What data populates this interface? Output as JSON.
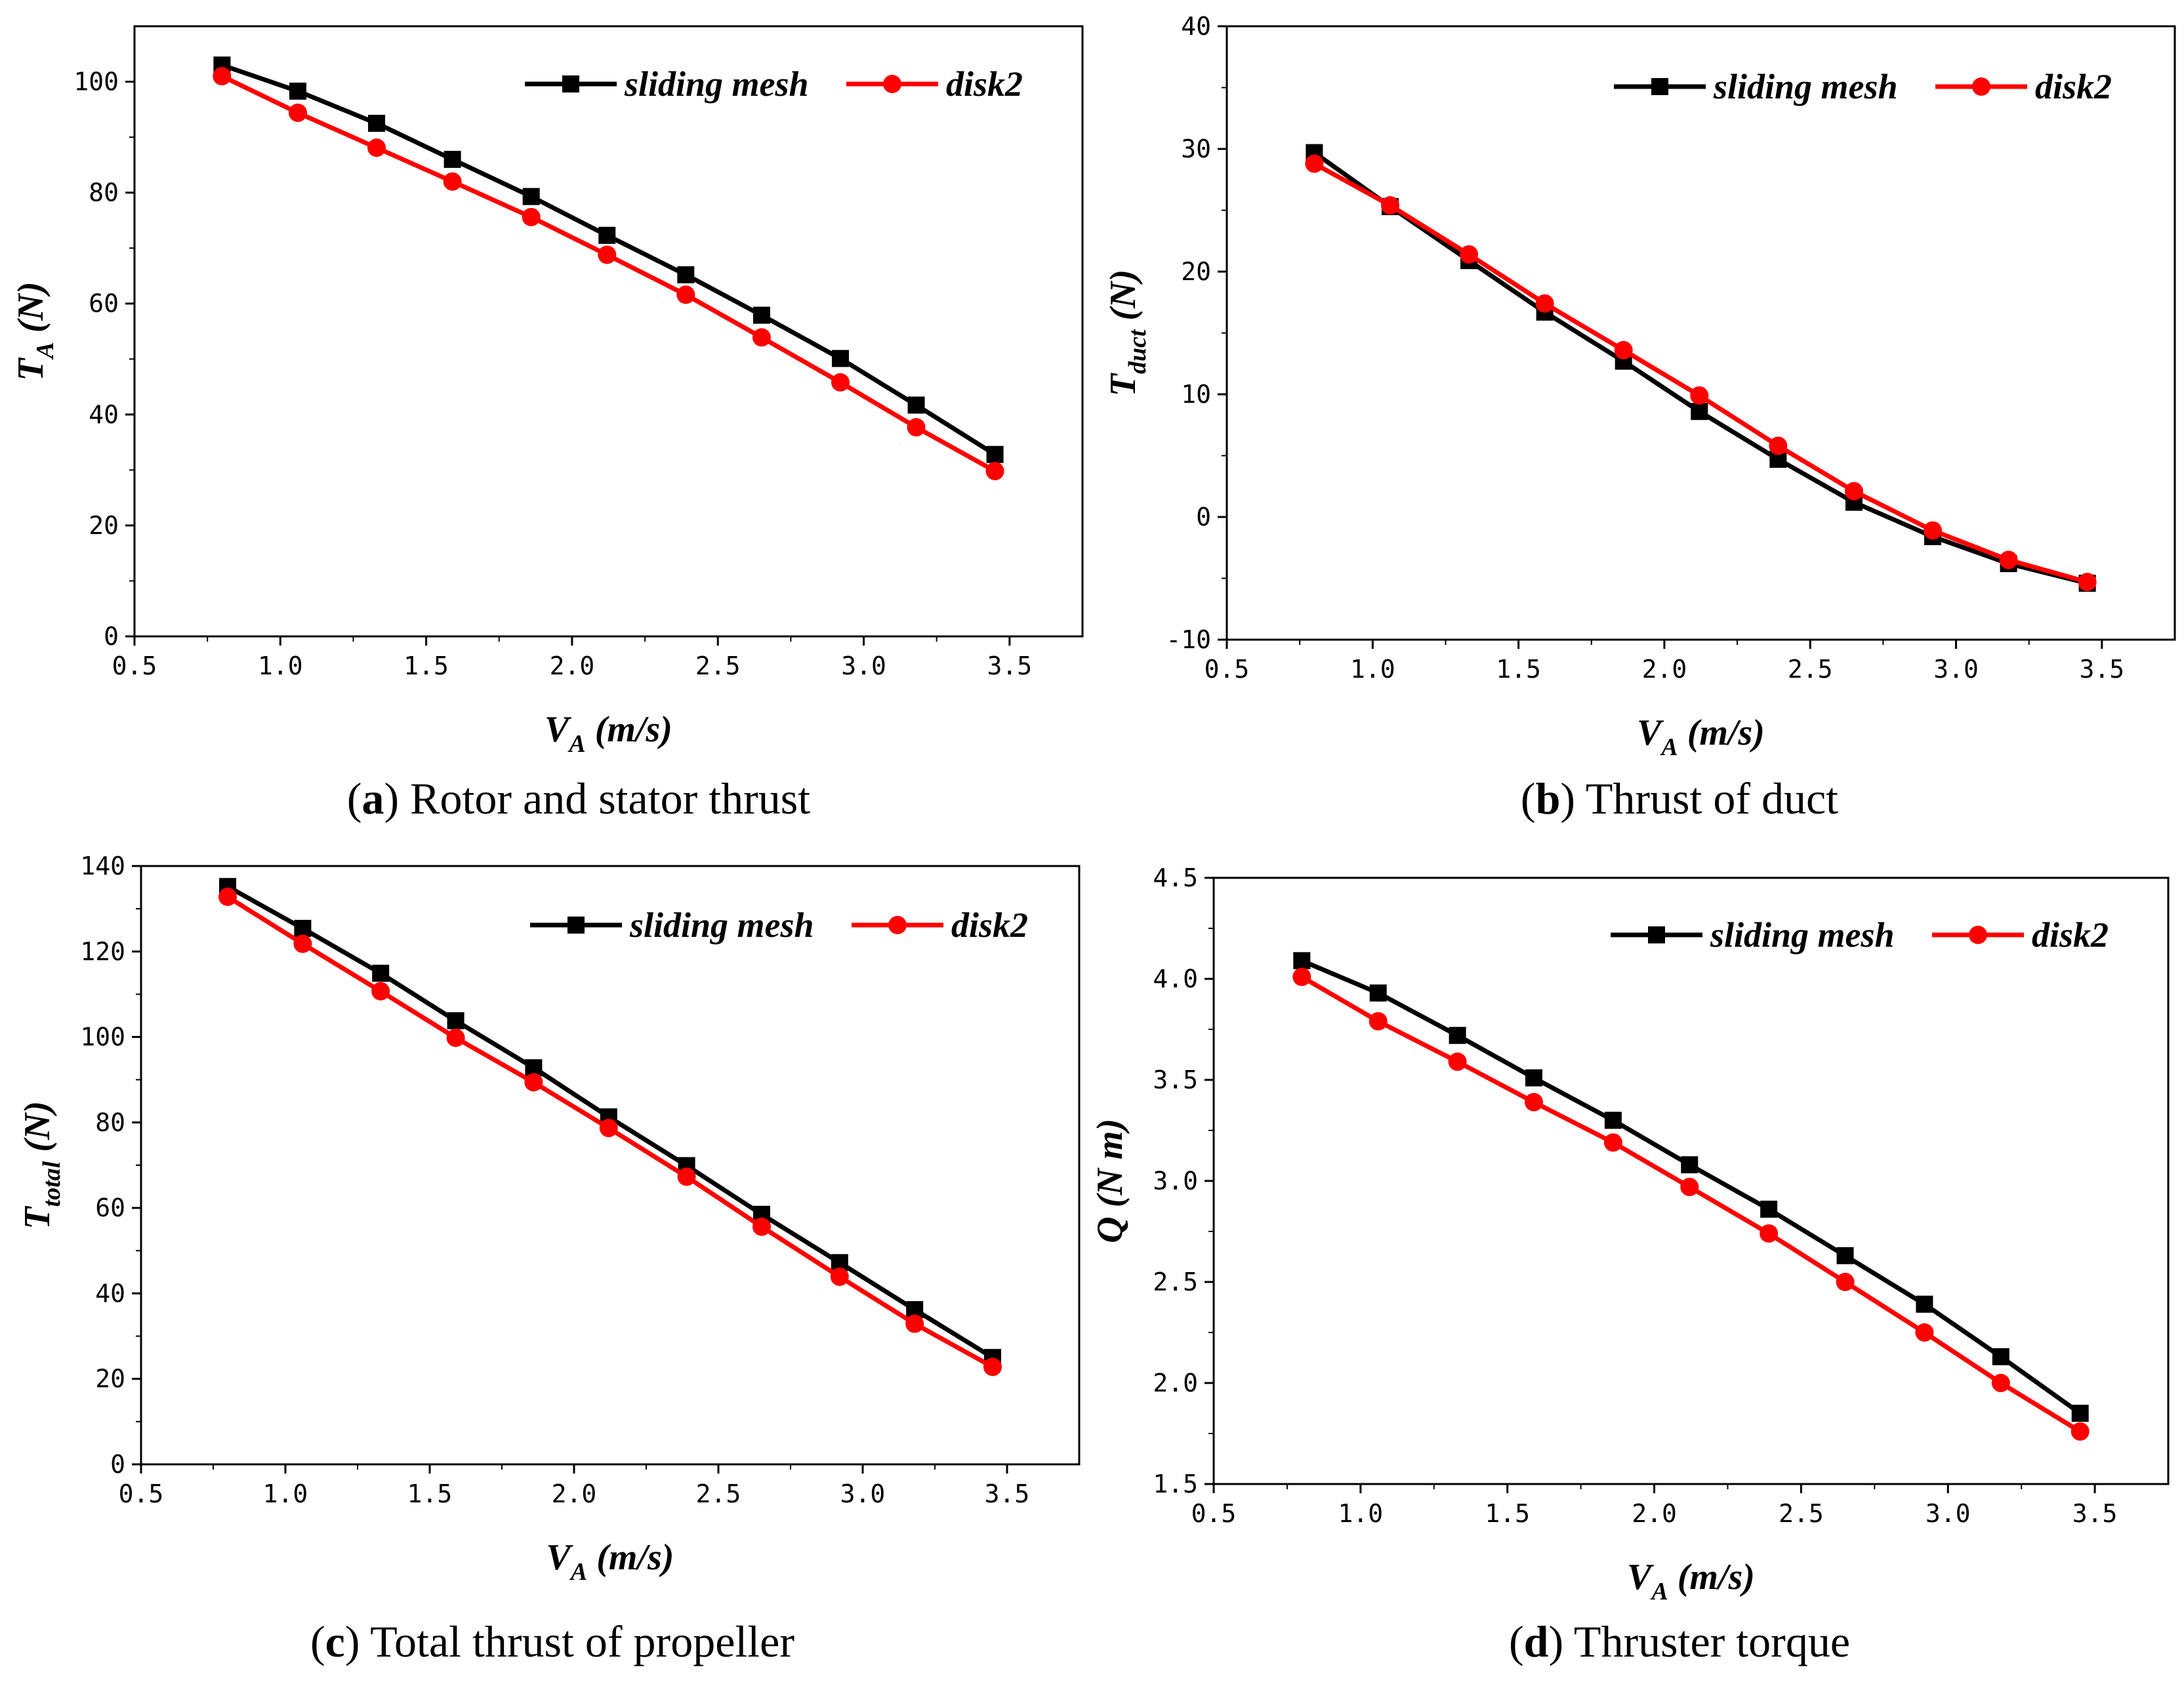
{
  "colors": {
    "sliding_mesh": "#000000",
    "disk2": "#ff0000"
  },
  "chart_data": [
    {
      "type": "line",
      "panel": "a",
      "caption": {
        "letter": "a",
        "text": " Rotor and stator thrust"
      },
      "xlabel": {
        "main": "V",
        "sub": "A",
        "rest": " (m/s)"
      },
      "ylabel": {
        "main": "T",
        "sub": "A",
        "rest": " (N)"
      },
      "xlim": [
        0.5,
        3.75
      ],
      "ylim": [
        0,
        110
      ],
      "xticks": [
        "0.5",
        "1.0",
        "1.5",
        "2.0",
        "2.5",
        "3.0",
        "3.5"
      ],
      "xtick_values": [
        0.5,
        1.0,
        1.5,
        2.0,
        2.5,
        3.0,
        3.5
      ],
      "yticks": [
        "0",
        "20",
        "40",
        "60",
        "80",
        "100"
      ],
      "ytick_values": [
        0,
        20,
        40,
        60,
        80,
        100
      ],
      "legend_position": "top-right",
      "x": [
        0.8,
        1.06,
        1.33,
        1.59,
        1.86,
        2.12,
        2.39,
        2.65,
        2.92,
        3.18,
        3.45
      ],
      "series": [
        {
          "name": "sliding mesh",
          "marker": "square",
          "values": [
            103.0,
            98.3,
            92.5,
            86.0,
            79.3,
            72.3,
            65.2,
            57.9,
            50.1,
            41.7,
            32.8
          ]
        },
        {
          "name": "disk2",
          "marker": "circle",
          "values": [
            101.0,
            94.4,
            88.1,
            82.0,
            75.6,
            68.8,
            61.6,
            53.9,
            45.8,
            37.7,
            29.8
          ]
        }
      ]
    },
    {
      "type": "line",
      "panel": "b",
      "caption": {
        "letter": "b",
        "text": " Thrust of duct"
      },
      "xlabel": {
        "main": "V",
        "sub": "A",
        "rest": " (m/s)"
      },
      "ylabel": {
        "main": "T",
        "sub": "duct",
        "rest": " (N)"
      },
      "xlim": [
        0.5,
        3.75
      ],
      "ylim": [
        -10,
        40
      ],
      "xticks": [
        "0.5",
        "1.0",
        "1.5",
        "2.0",
        "2.5",
        "3.0",
        "3.5"
      ],
      "xtick_values": [
        0.5,
        1.0,
        1.5,
        2.0,
        2.5,
        3.0,
        3.5
      ],
      "yticks": [
        "-10",
        "0",
        "10",
        "20",
        "30",
        "40"
      ],
      "ytick_values": [
        -10,
        0,
        10,
        20,
        30,
        40
      ],
      "legend_position": "top-right",
      "x": [
        0.8,
        1.06,
        1.33,
        1.59,
        1.86,
        2.12,
        2.39,
        2.65,
        2.92,
        3.18,
        3.45
      ],
      "series": [
        {
          "name": "sliding mesh",
          "marker": "square",
          "values": [
            29.7,
            25.3,
            20.9,
            16.7,
            12.7,
            8.6,
            4.7,
            1.2,
            -1.6,
            -3.8,
            -5.4
          ]
        },
        {
          "name": "disk2",
          "marker": "circle",
          "values": [
            28.8,
            25.4,
            21.4,
            17.4,
            13.6,
            9.9,
            5.8,
            2.1,
            -1.1,
            -3.5,
            -5.3
          ]
        }
      ]
    },
    {
      "type": "line",
      "panel": "c",
      "caption": {
        "letter": "c",
        "text": " Total thrust of propeller"
      },
      "xlabel": {
        "main": "V",
        "sub": "A",
        "rest": " (m/s)"
      },
      "ylabel": {
        "main": "T",
        "sub": "total",
        "rest": " (N)"
      },
      "xlim": [
        0.5,
        3.75
      ],
      "ylim": [
        0,
        140
      ],
      "xticks": [
        "0.5",
        "1.0",
        "1.5",
        "2.0",
        "2.5",
        "3.0",
        "3.5"
      ],
      "xtick_values": [
        0.5,
        1.0,
        1.5,
        2.0,
        2.5,
        3.0,
        3.5
      ],
      "yticks": [
        "0",
        "20",
        "40",
        "60",
        "80",
        "100",
        "120",
        "140"
      ],
      "ytick_values": [
        0,
        20,
        40,
        60,
        80,
        100,
        120,
        140
      ],
      "legend_position": "top-right",
      "x": [
        0.8,
        1.06,
        1.33,
        1.59,
        1.86,
        2.12,
        2.39,
        2.65,
        2.92,
        3.18,
        3.45
      ],
      "series": [
        {
          "name": "sliding mesh",
          "marker": "square",
          "values": [
            135.2,
            125.4,
            114.9,
            103.8,
            92.8,
            81.3,
            69.9,
            58.5,
            47.2,
            36.2,
            25.0
          ]
        },
        {
          "name": "disk2",
          "marker": "circle",
          "values": [
            132.8,
            121.8,
            110.7,
            99.8,
            89.4,
            78.7,
            67.3,
            55.6,
            43.9,
            32.9,
            22.8
          ]
        }
      ]
    },
    {
      "type": "line",
      "panel": "d",
      "caption": {
        "letter": "d",
        "text": " Thruster torque"
      },
      "xlabel": {
        "main": "V",
        "sub": "A",
        "rest": " (m/s)"
      },
      "ylabel": {
        "main": "Q",
        "sub": "",
        "rest": " (N m)"
      },
      "xlim": [
        0.5,
        3.75
      ],
      "ylim": [
        1.5,
        4.5
      ],
      "xticks": [
        "0.5",
        "1.0",
        "1.5",
        "2.0",
        "2.5",
        "3.0",
        "3.5"
      ],
      "xtick_values": [
        0.5,
        1.0,
        1.5,
        2.0,
        2.5,
        3.0,
        3.5
      ],
      "yticks": [
        "1.5",
        "2.0",
        "2.5",
        "3.0",
        "3.5",
        "4.0",
        "4.5"
      ],
      "ytick_values": [
        1.5,
        2.0,
        2.5,
        3.0,
        3.5,
        4.0,
        4.5
      ],
      "legend_position": "top-right",
      "x": [
        0.8,
        1.06,
        1.33,
        1.59,
        1.86,
        2.12,
        2.39,
        2.65,
        2.92,
        3.18,
        3.45
      ],
      "series": [
        {
          "name": "sliding mesh",
          "marker": "square",
          "values": [
            4.09,
            3.93,
            3.72,
            3.51,
            3.3,
            3.08,
            2.86,
            2.63,
            2.39,
            2.13,
            1.85
          ]
        },
        {
          "name": "disk2",
          "marker": "circle",
          "values": [
            4.01,
            3.79,
            3.59,
            3.39,
            3.19,
            2.97,
            2.74,
            2.5,
            2.25,
            2.0,
            1.76
          ]
        }
      ]
    }
  ]
}
